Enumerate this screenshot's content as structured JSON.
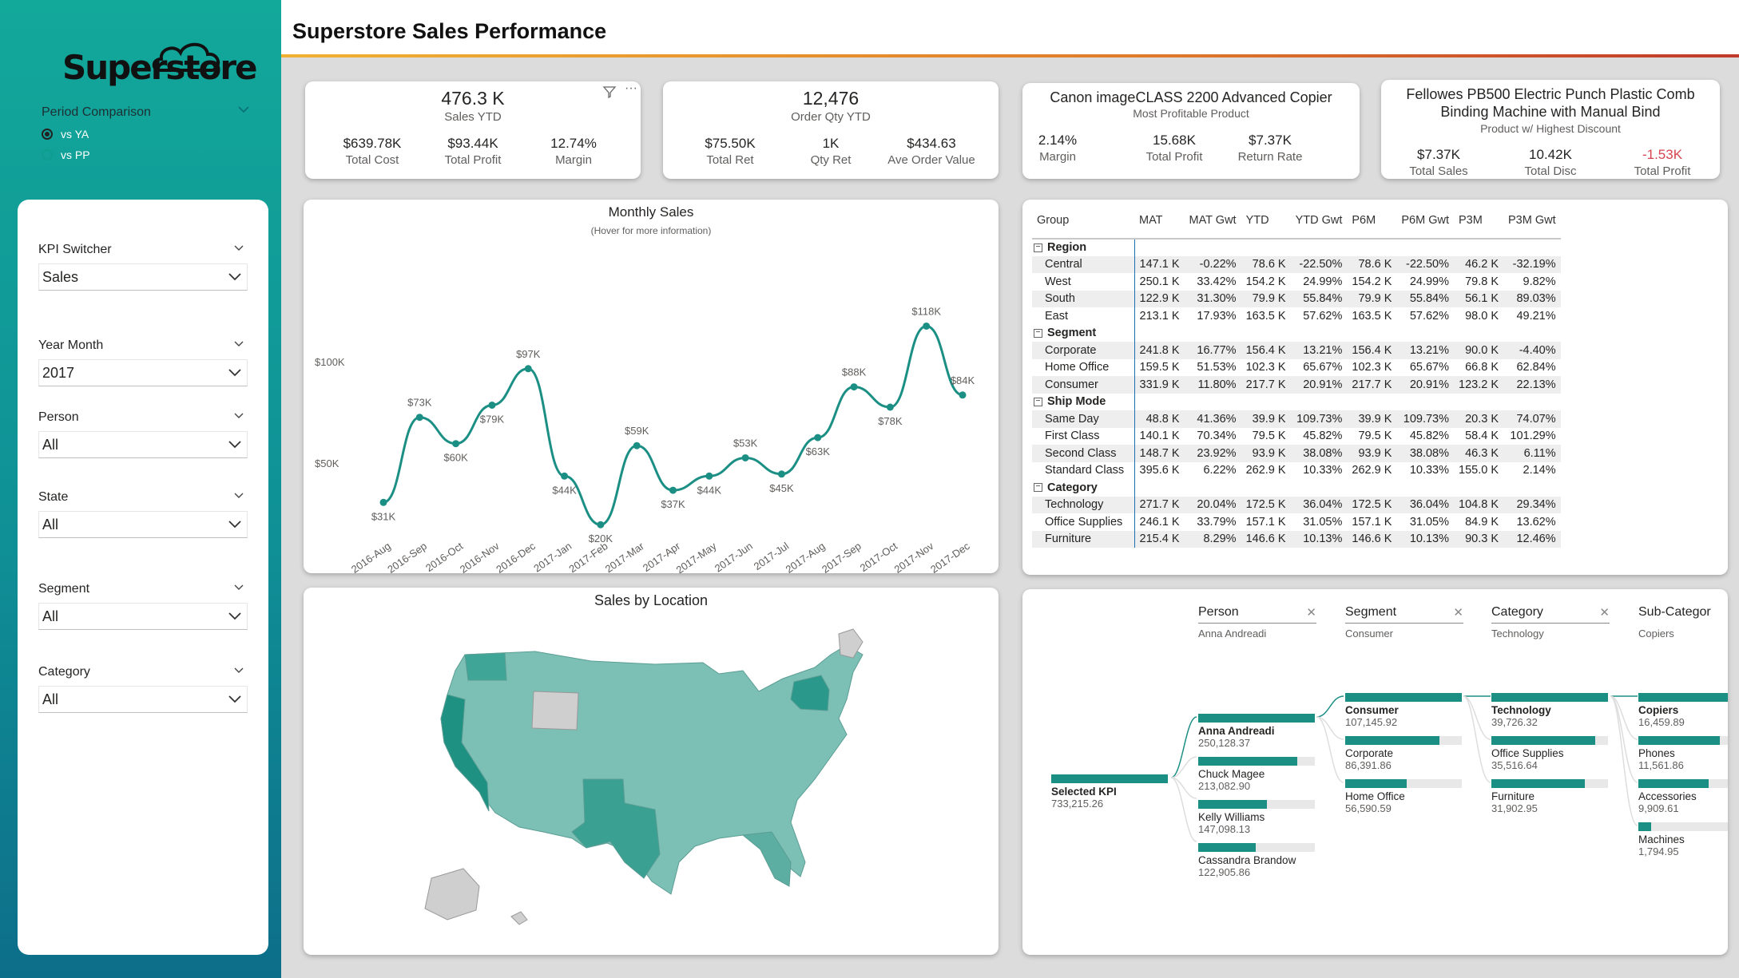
{
  "app": {
    "brand": "Superstore",
    "title": "Superstore Sales Performance"
  },
  "colors": {
    "teal": "#1c8f85",
    "accent_gradient": [
      "#f0b132",
      "#c0392b"
    ],
    "negative": "#d64550"
  },
  "period": {
    "title": "Period Comparison",
    "options": [
      {
        "label": "vs YA",
        "selected": true
      },
      {
        "label": "vs PP",
        "selected": false
      }
    ]
  },
  "filters": [
    {
      "label": "KPI Switcher",
      "value": "Sales"
    },
    {
      "label": "Year Month",
      "value": "2017"
    },
    {
      "label": "Person",
      "value": "All"
    },
    {
      "label": "State",
      "value": "All"
    },
    {
      "label": "Segment",
      "value": "All"
    },
    {
      "label": "Category",
      "value": "All"
    }
  ],
  "kpi1": {
    "big": "476.3 K",
    "sub": "Sales YTD",
    "items": [
      {
        "v": "$639.78K",
        "l": "Total Cost"
      },
      {
        "v": "$93.44K",
        "l": "Total Profit"
      },
      {
        "v": "12.74%",
        "l": "Margin"
      }
    ]
  },
  "kpi2": {
    "big": "12,476",
    "sub": "Order Qty YTD",
    "items": [
      {
        "v": "$75.50K",
        "l": "Total Ret"
      },
      {
        "v": "1K",
        "l": "Qty Ret"
      },
      {
        "v": "$434.63",
        "l": "Ave Order Value"
      }
    ]
  },
  "kpi3": {
    "big": "Canon imageCLASS 2200 Advanced Copier",
    "sub": "Most Profitable Product",
    "items": [
      {
        "v": "2.14%",
        "l": "Margin"
      },
      {
        "v": "15.68K",
        "l": "Total Profit"
      },
      {
        "v": "$7.37K",
        "l": "Return Rate"
      }
    ]
  },
  "kpi4": {
    "big_line1": "Fellowes PB500 Electric Punch Plastic Comb",
    "big_line2": "Binding Machine with Manual Bind",
    "sub": "Product w/ Highest Discount",
    "items": [
      {
        "v": "$7.37K",
        "l": "Total Sales"
      },
      {
        "v": "10.42K",
        "l": "Total Disc"
      },
      {
        "v": "-1.53K",
        "l": "Total Profit"
      }
    ]
  },
  "monthly": {
    "title": "Monthly Sales",
    "subtitle": "(Hover for more information)"
  },
  "chart_data": {
    "type": "line",
    "title": "Monthly Sales",
    "x": [
      "2016-Aug",
      "2016-Sep",
      "2016-Oct",
      "2016-Nov",
      "2016-Dec",
      "2017-Jan",
      "2017-Feb",
      "2017-Mar",
      "2017-Apr",
      "2017-May",
      "2017-Jun",
      "2017-Jul",
      "2017-Aug",
      "2017-Sep",
      "2017-Oct",
      "2017-Nov",
      "2017-Dec"
    ],
    "series": [
      {
        "values": [
          31,
          73,
          60,
          79,
          97,
          44,
          20,
          59,
          37,
          44,
          53,
          45,
          63,
          88,
          78,
          118,
          84
        ],
        "labels": [
          "$31K",
          "$73K",
          "$60K",
          "$79K",
          "$97K",
          "$44K",
          "$20K",
          "$59K",
          "$37K",
          "$44K",
          "$53K",
          "$45K",
          "$63K",
          "$88K",
          "$78K",
          "$118K",
          "$84K"
        ]
      }
    ],
    "yticks": [
      {
        "v": 50,
        "label": "$50K"
      },
      {
        "v": 100,
        "label": "$100K"
      }
    ],
    "ylim": [
      0,
      130
    ]
  },
  "matrix": {
    "columns": [
      "Group",
      "MAT",
      "MAT Gwt",
      "YTD",
      "YTD Gwt",
      "P6M",
      "P6M Gwt",
      "P3M",
      "P3M Gwt"
    ],
    "groups": [
      {
        "name": "Region",
        "rows": [
          [
            "Central",
            "147.1 K",
            "-0.22%",
            "78.6 K",
            "-22.50%",
            "78.6 K",
            "-22.50%",
            "46.2 K",
            "-32.19%"
          ],
          [
            "West",
            "250.1 K",
            "33.42%",
            "154.2 K",
            "24.99%",
            "154.2 K",
            "24.99%",
            "79.8 K",
            "9.82%"
          ],
          [
            "South",
            "122.9 K",
            "31.30%",
            "79.9 K",
            "55.84%",
            "79.9 K",
            "55.84%",
            "56.1 K",
            "89.03%"
          ],
          [
            "East",
            "213.1 K",
            "17.93%",
            "163.5 K",
            "57.62%",
            "163.5 K",
            "57.62%",
            "98.0 K",
            "49.21%"
          ]
        ]
      },
      {
        "name": "Segment",
        "rows": [
          [
            "Corporate",
            "241.8 K",
            "16.77%",
            "156.4 K",
            "13.21%",
            "156.4 K",
            "13.21%",
            "90.0 K",
            "-4.40%"
          ],
          [
            "Home Office",
            "159.5 K",
            "51.53%",
            "102.3 K",
            "65.67%",
            "102.3 K",
            "65.67%",
            "66.8 K",
            "62.84%"
          ],
          [
            "Consumer",
            "331.9 K",
            "11.80%",
            "217.7 K",
            "20.91%",
            "217.7 K",
            "20.91%",
            "123.2 K",
            "22.13%"
          ]
        ]
      },
      {
        "name": "Ship Mode",
        "rows": [
          [
            "Same Day",
            "48.8 K",
            "41.36%",
            "39.9 K",
            "109.73%",
            "39.9 K",
            "109.73%",
            "20.3 K",
            "74.07%"
          ],
          [
            "First Class",
            "140.1 K",
            "70.34%",
            "79.5 K",
            "45.82%",
            "79.5 K",
            "45.82%",
            "58.4 K",
            "101.29%"
          ],
          [
            "Second Class",
            "148.7 K",
            "23.92%",
            "93.9 K",
            "38.08%",
            "93.9 K",
            "38.08%",
            "46.3 K",
            "6.11%"
          ],
          [
            "Standard Class",
            "395.6 K",
            "6.22%",
            "262.9 K",
            "10.33%",
            "262.9 K",
            "10.33%",
            "155.0 K",
            "2.14%"
          ]
        ]
      },
      {
        "name": "Category",
        "rows": [
          [
            "Technology",
            "271.7 K",
            "20.04%",
            "172.5 K",
            "36.04%",
            "172.5 K",
            "36.04%",
            "104.8 K",
            "29.34%"
          ],
          [
            "Office Supplies",
            "246.1 K",
            "33.79%",
            "157.1 K",
            "31.05%",
            "157.1 K",
            "31.05%",
            "84.9 K",
            "13.62%"
          ],
          [
            "Furniture",
            "215.4 K",
            "8.29%",
            "146.6 K",
            "10.13%",
            "146.6 K",
            "10.13%",
            "90.3 K",
            "12.46%"
          ]
        ]
      }
    ]
  },
  "map": {
    "title": "Sales by Location"
  },
  "decomp": {
    "levels": [
      {
        "header": "Person",
        "sub": "Anna Andreadi"
      },
      {
        "header": "Segment",
        "sub": "Consumer"
      },
      {
        "header": "Category",
        "sub": "Technology"
      },
      {
        "header": "Sub-Categor",
        "sub": "Copiers"
      }
    ],
    "root": {
      "name": "Selected KPI",
      "value": "733,215.26"
    },
    "persons": [
      {
        "name": "Anna Andreadi",
        "value": "250,128.37",
        "frac": 1.0,
        "bold": true
      },
      {
        "name": "Chuck Magee",
        "value": "213,082.90",
        "frac": 0.85
      },
      {
        "name": "Kelly Williams",
        "value": "147,098.13",
        "frac": 0.59
      },
      {
        "name": "Cassandra Brandow",
        "value": "122,905.86",
        "frac": 0.49
      }
    ],
    "segments": [
      {
        "name": "Consumer",
        "value": "107,145.92",
        "frac": 1.0,
        "bold": true
      },
      {
        "name": "Corporate",
        "value": "86,391.86",
        "frac": 0.81
      },
      {
        "name": "Home Office",
        "value": "56,590.59",
        "frac": 0.53
      }
    ],
    "categories": [
      {
        "name": "Technology",
        "value": "39,726.32",
        "frac": 1.0,
        "bold": true
      },
      {
        "name": "Office Supplies",
        "value": "35,516.64",
        "frac": 0.89
      },
      {
        "name": "Furniture",
        "value": "31,902.95",
        "frac": 0.8
      }
    ],
    "subcats": [
      {
        "name": "Copiers",
        "value": "16,459.89",
        "frac": 1.0,
        "bold": true
      },
      {
        "name": "Phones",
        "value": "11,561.86",
        "frac": 0.7
      },
      {
        "name": "Accessories",
        "value": "9,909.61",
        "frac": 0.6
      },
      {
        "name": "Machines",
        "value": "1,794.95",
        "frac": 0.11
      }
    ]
  }
}
